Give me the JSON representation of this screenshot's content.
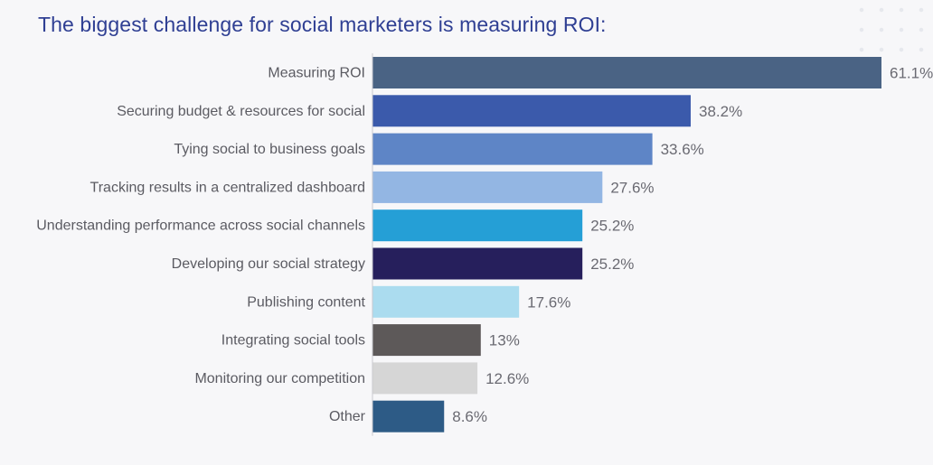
{
  "title": "The biggest challenge for social marketers is measuring ROI:",
  "chart_data": {
    "type": "bar",
    "orientation": "horizontal",
    "title": "The biggest challenge for social marketers is measuring ROI:",
    "xlabel": "",
    "ylabel": "",
    "xlim": [
      0,
      61.1
    ],
    "grid": false,
    "categories": [
      "Measuring ROI",
      "Securing budget & resources for social",
      "Tying social to business goals",
      "Tracking results in a centralized dashboard",
      "Understanding performance across social channels",
      "Developing our social strategy",
      "Publishing content",
      "Integrating social tools",
      "Monitoring our competition",
      "Other"
    ],
    "values": [
      61.1,
      38.2,
      33.6,
      27.6,
      25.2,
      25.2,
      17.6,
      13,
      12.6,
      8.6
    ],
    "value_labels": [
      "61.1%",
      "38.2%",
      "33.6%",
      "27.6%",
      "25.2%",
      "25.2%",
      "17.6%",
      "13%",
      "12.6%",
      "8.6%"
    ],
    "colors": [
      "#4a6384",
      "#3b5aab",
      "#5e85c6",
      "#93b6e3",
      "#259fd6",
      "#261f5c",
      "#abdcef",
      "#5d5959",
      "#d6d6d6",
      "#2d5b86"
    ]
  }
}
